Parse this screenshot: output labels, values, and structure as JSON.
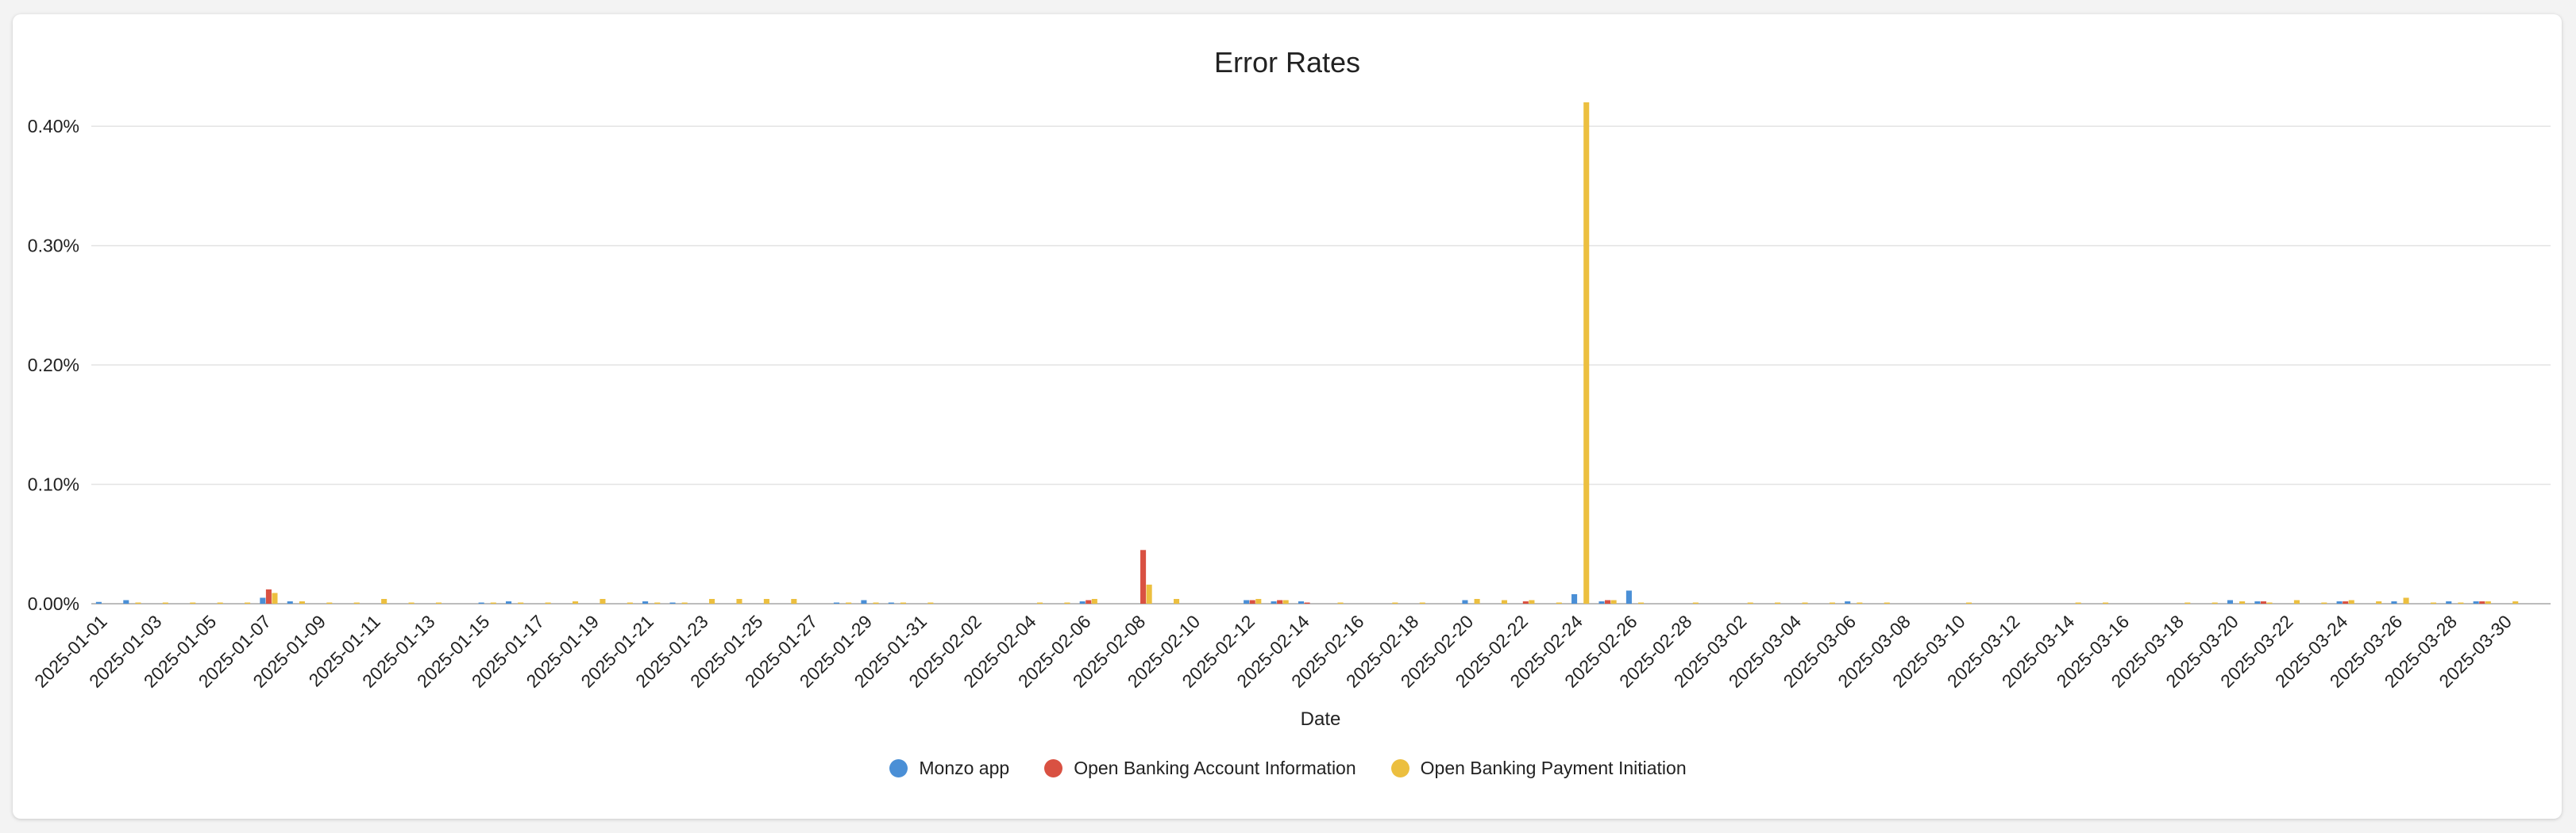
{
  "chart_data": {
    "type": "bar",
    "title": "Error Rates",
    "xlabel": "Date",
    "ylabel": "",
    "ylim": [
      0,
      0.42
    ],
    "y_ticks": [
      0,
      0.1,
      0.2,
      0.3,
      0.4
    ],
    "y_tick_labels": [
      "0.00%",
      "0.10%",
      "0.20%",
      "0.30%",
      "0.40%"
    ],
    "x_tick_labels": [
      "2025-01-01",
      "2025-01-03",
      "2025-01-05",
      "2025-01-07",
      "2025-01-09",
      "2025-01-11",
      "2025-01-13",
      "2025-01-15",
      "2025-01-17",
      "2025-01-19",
      "2025-01-21",
      "2025-01-23",
      "2025-01-25",
      "2025-01-27",
      "2025-01-29",
      "2025-01-31",
      "2025-02-02",
      "2025-02-04",
      "2025-02-06",
      "2025-02-08",
      "2025-02-10",
      "2025-02-12",
      "2025-02-14",
      "2025-02-16",
      "2025-02-18",
      "2025-02-20",
      "2025-02-22",
      "2025-02-24",
      "2025-02-26",
      "2025-02-28",
      "2025-03-02",
      "2025-03-04",
      "2025-03-06",
      "2025-03-08",
      "2025-03-10",
      "2025-03-12",
      "2025-03-14",
      "2025-03-16",
      "2025-03-18",
      "2025-03-20",
      "2025-03-22",
      "2025-03-24",
      "2025-03-26",
      "2025-03-28",
      "2025-03-30"
    ],
    "grid": true,
    "legend_position": "bottom",
    "categories": [
      "2025-01-01",
      "2025-01-02",
      "2025-01-03",
      "2025-01-04",
      "2025-01-05",
      "2025-01-06",
      "2025-01-07",
      "2025-01-08",
      "2025-01-09",
      "2025-01-10",
      "2025-01-11",
      "2025-01-12",
      "2025-01-13",
      "2025-01-14",
      "2025-01-15",
      "2025-01-16",
      "2025-01-17",
      "2025-01-18",
      "2025-01-19",
      "2025-01-20",
      "2025-01-21",
      "2025-01-22",
      "2025-01-23",
      "2025-01-24",
      "2025-01-25",
      "2025-01-26",
      "2025-01-27",
      "2025-01-28",
      "2025-01-29",
      "2025-01-30",
      "2025-01-31",
      "2025-02-01",
      "2025-02-02",
      "2025-02-03",
      "2025-02-04",
      "2025-02-05",
      "2025-02-06",
      "2025-02-07",
      "2025-02-08",
      "2025-02-09",
      "2025-02-10",
      "2025-02-11",
      "2025-02-12",
      "2025-02-13",
      "2025-02-14",
      "2025-02-15",
      "2025-02-16",
      "2025-02-17",
      "2025-02-18",
      "2025-02-19",
      "2025-02-20",
      "2025-02-21",
      "2025-02-22",
      "2025-02-23",
      "2025-02-24",
      "2025-02-25",
      "2025-02-26",
      "2025-02-27",
      "2025-02-28",
      "2025-03-01",
      "2025-03-02",
      "2025-03-03",
      "2025-03-04",
      "2025-03-05",
      "2025-03-06",
      "2025-03-07",
      "2025-03-08",
      "2025-03-09",
      "2025-03-10",
      "2025-03-11",
      "2025-03-12",
      "2025-03-13",
      "2025-03-14",
      "2025-03-15",
      "2025-03-16",
      "2025-03-17",
      "2025-03-18",
      "2025-03-19",
      "2025-03-20",
      "2025-03-21",
      "2025-03-22",
      "2025-03-23",
      "2025-03-24",
      "2025-03-25",
      "2025-03-26",
      "2025-03-27",
      "2025-03-28",
      "2025-03-29",
      "2025-03-30",
      "2025-03-31"
    ],
    "series": [
      {
        "name": "Monzo app",
        "color": "#4a8fd6",
        "values": [
          0.0015,
          0.003,
          0,
          0,
          0,
          0,
          0.005,
          0.002,
          0,
          0,
          0,
          0,
          0,
          0,
          0.001,
          0.002,
          0,
          0,
          0,
          0,
          0.002,
          0.001,
          0,
          0,
          0,
          0,
          0,
          0.001,
          0.003,
          0.001,
          0,
          0,
          0,
          0,
          0,
          0,
          0.002,
          0,
          0,
          0,
          0,
          0,
          0.003,
          0.002,
          0.002,
          0,
          0,
          0,
          0,
          0,
          0.003,
          0,
          0,
          0,
          0.008,
          0.002,
          0.011,
          0,
          0,
          0,
          0,
          0,
          0,
          0,
          0.002,
          0,
          0,
          0,
          0,
          0,
          0,
          0,
          0,
          0,
          0,
          0,
          0,
          0,
          0.003,
          0.002,
          0,
          0,
          0.002,
          0,
          0.002,
          0,
          0.002,
          0.002,
          0,
          0
        ]
      },
      {
        "name": "Open Banking Account Information",
        "color": "#d95142",
        "values": [
          0,
          0,
          0,
          0,
          0,
          0,
          0.012,
          0,
          0,
          0,
          0,
          0,
          0,
          0,
          0,
          0,
          0,
          0,
          0,
          0,
          0,
          0,
          0,
          0,
          0,
          0,
          0,
          0,
          0,
          0,
          0,
          0,
          0,
          0,
          0,
          0,
          0.003,
          0,
          0.045,
          0,
          0,
          0,
          0.003,
          0.003,
          0.001,
          0,
          0,
          0,
          0,
          0,
          0,
          0,
          0.002,
          0,
          0,
          0.003,
          0,
          0,
          0,
          0,
          0,
          0,
          0,
          0,
          0,
          0,
          0,
          0,
          0,
          0,
          0,
          0,
          0,
          0,
          0,
          0,
          0,
          0,
          0,
          0.002,
          0,
          0,
          0.002,
          0,
          0,
          0,
          0,
          0.002,
          0,
          0
        ]
      },
      {
        "name": "Open Banking Payment Initiation",
        "color": "#ecbf3f",
        "values": [
          0,
          0.001,
          0.001,
          0.001,
          0.001,
          0.001,
          0.009,
          0.002,
          0.001,
          0.001,
          0.004,
          0.001,
          0.001,
          0,
          0.001,
          0.001,
          0.001,
          0.002,
          0.004,
          0.001,
          0.001,
          0.001,
          0.004,
          0.004,
          0.004,
          0.004,
          0,
          0.001,
          0.001,
          0.001,
          0.001,
          0,
          0,
          0,
          0.001,
          0.001,
          0.004,
          0,
          0.016,
          0.004,
          0,
          0,
          0.004,
          0.003,
          0,
          0.001,
          0,
          0.001,
          0.001,
          0,
          0.004,
          0.003,
          0.003,
          0.001,
          0.42,
          0.003,
          0.001,
          0,
          0.001,
          0,
          0.001,
          0.001,
          0.001,
          0.001,
          0.001,
          0.001,
          0,
          0,
          0.001,
          0,
          0,
          0,
          0.001,
          0.001,
          0,
          0,
          0.001,
          0.001,
          0.002,
          0.001,
          0.003,
          0.001,
          0.003,
          0.002,
          0.005,
          0.001,
          0.001,
          0.002,
          0.002,
          0
        ]
      }
    ]
  }
}
